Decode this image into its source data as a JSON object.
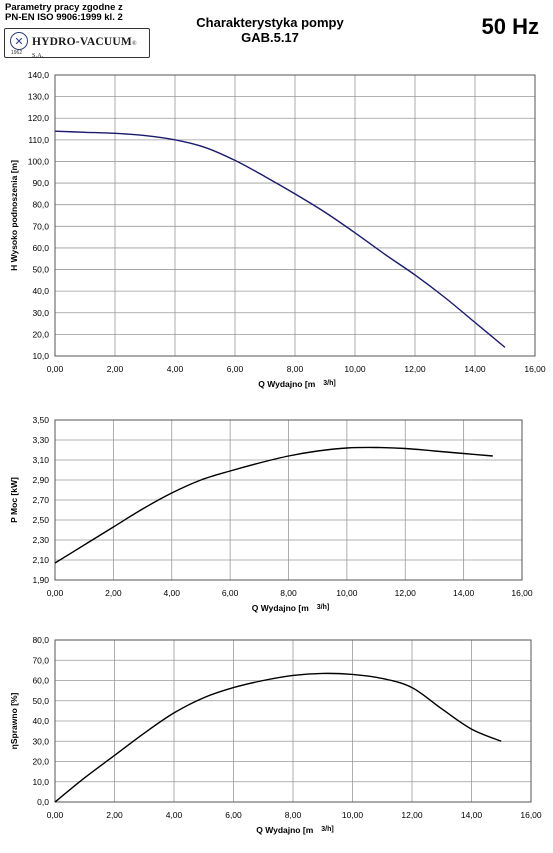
{
  "header": {
    "params_line1": "Parametry pracy zgodne z",
    "params_line2": "PN-EN ISO 9906:1999 kl. 2",
    "logo_name": "HYDRO-VACUUM",
    "logo_suffix": "® S.A.",
    "logo_year": "1962",
    "title_line1": "Charakterystyka pompy",
    "title_line2": "GAB.5.17",
    "frequency": "50 Hz"
  },
  "colors": {
    "curve_head": "#1a1a6e",
    "curve_other": "#000000",
    "grid": "#9a9a9a"
  },
  "chart_data": [
    {
      "type": "line",
      "xlabel": "Q Wydajno [m",
      "xlabel_unit": "3/h]",
      "ylabel": "H  Wysoko podnoszenia [m]",
      "xlim": [
        0,
        16
      ],
      "ylim": [
        10,
        140
      ],
      "x_ticks": [
        "0,00",
        "2,00",
        "4,00",
        "6,00",
        "8,00",
        "10,00",
        "12,00",
        "14,00",
        "16,00"
      ],
      "y_ticks": [
        "10,0",
        "20,0",
        "30,0",
        "40,0",
        "50,0",
        "60,0",
        "70,0",
        "80,0",
        "90,0",
        "100,0",
        "110,0",
        "120,0",
        "130,0",
        "140,0"
      ],
      "grid": true,
      "series": [
        {
          "x": [
            0,
            1,
            2,
            3,
            4,
            5,
            6,
            7,
            8,
            9,
            10,
            11,
            12,
            13,
            14,
            15
          ],
          "y": [
            114,
            113.5,
            113,
            112,
            110,
            106.5,
            100.5,
            93,
            85,
            76.5,
            67,
            57,
            47.5,
            37,
            25.5,
            14
          ]
        }
      ]
    },
    {
      "type": "line",
      "xlabel": "Q Wydajno [m",
      "xlabel_unit": "3/h]",
      "ylabel": "P  Moc [kW]",
      "xlim": [
        0,
        16
      ],
      "ylim": [
        1.9,
        3.5
      ],
      "x_ticks": [
        "0,00",
        "2,00",
        "4,00",
        "6,00",
        "8,00",
        "10,00",
        "12,00",
        "14,00",
        "16,00"
      ],
      "y_ticks": [
        "1,90",
        "2,10",
        "2,30",
        "2,50",
        "2,70",
        "2,90",
        "3,10",
        "3,30",
        "3,50"
      ],
      "grid": true,
      "series": [
        {
          "x": [
            0,
            1,
            2,
            3,
            4,
            5,
            6,
            7,
            8,
            9,
            10,
            11,
            12,
            13,
            14,
            15
          ],
          "y": [
            2.07,
            2.25,
            2.43,
            2.61,
            2.77,
            2.9,
            2.99,
            3.07,
            3.14,
            3.19,
            3.22,
            3.225,
            3.215,
            3.19,
            3.165,
            3.14
          ]
        }
      ]
    },
    {
      "type": "line",
      "xlabel": "Q Wydajno [m",
      "xlabel_unit": "3/h]",
      "ylabel": "ηSprawno [%]",
      "xlim": [
        0,
        16
      ],
      "ylim": [
        0,
        80
      ],
      "x_ticks": [
        "0,00",
        "2,00",
        "4,00",
        "6,00",
        "8,00",
        "10,00",
        "12,00",
        "14,00",
        "16,00"
      ],
      "y_ticks": [
        "0,0",
        "10,0",
        "20,0",
        "30,0",
        "40,0",
        "50,0",
        "60,0",
        "70,0",
        "80,0"
      ],
      "grid": true,
      "series": [
        {
          "x": [
            0,
            1,
            2,
            3,
            4,
            5,
            6,
            7,
            8,
            9,
            10,
            11,
            12,
            13,
            14,
            15
          ],
          "y": [
            0,
            12,
            23,
            34,
            44,
            51.5,
            56.5,
            60,
            62.5,
            63.5,
            63,
            61,
            56.5,
            46,
            36,
            30
          ]
        }
      ]
    }
  ]
}
